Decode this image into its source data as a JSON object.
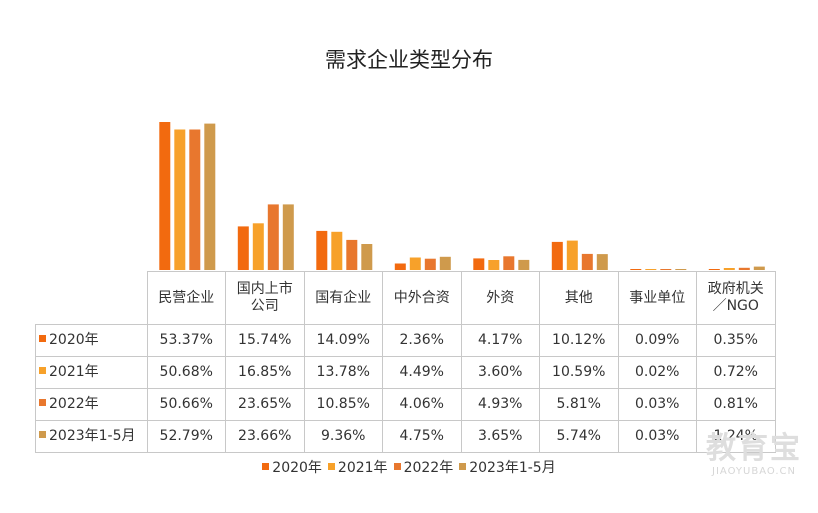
{
  "chart_data": {
    "type": "bar",
    "title": "需求企业类型分布",
    "xlabel": "",
    "ylabel": "",
    "ylim": [
      0,
      55
    ],
    "grid": false,
    "legend_position": "bottom",
    "categories": [
      "民营企业",
      "国内上市公司",
      "国有企业",
      "中外合资",
      "外资",
      "其他",
      "事业单位",
      "政府机关／NGO"
    ],
    "category_labels": [
      [
        "民营企业"
      ],
      [
        "国内上市",
        "公司"
      ],
      [
        "国有企业"
      ],
      [
        "中外合资"
      ],
      [
        "外资"
      ],
      [
        "其他"
      ],
      [
        "事业单位"
      ],
      [
        "政府机关",
        "／NGO"
      ]
    ],
    "series": [
      {
        "name": "2020年",
        "color": "#f26a0f",
        "values": [
          53.37,
          15.74,
          14.09,
          2.36,
          4.17,
          10.12,
          0.09,
          0.35
        ],
        "labels": [
          "53.37%",
          "15.74%",
          "14.09%",
          "2.36%",
          "4.17%",
          "10.12%",
          "0.09%",
          "0.35%"
        ]
      },
      {
        "name": "2021年",
        "color": "#f7a12a",
        "values": [
          50.68,
          16.85,
          13.78,
          4.49,
          3.6,
          10.59,
          0.02,
          0.72
        ],
        "labels": [
          "50.68%",
          "16.85%",
          "13.78%",
          "4.49%",
          "3.60%",
          "10.59%",
          "0.02%",
          "0.72%"
        ]
      },
      {
        "name": "2022年",
        "color": "#e8772e",
        "values": [
          50.66,
          23.65,
          10.85,
          4.06,
          4.93,
          5.81,
          0.03,
          0.81
        ],
        "labels": [
          "50.66%",
          "23.65%",
          "10.85%",
          "4.06%",
          "4.93%",
          "5.81%",
          "0.03%",
          "0.81%"
        ]
      },
      {
        "name": "2023年1-5月",
        "color": "#cf9a4c",
        "values": [
          52.79,
          23.66,
          9.36,
          4.75,
          3.65,
          5.74,
          0.03,
          1.24
        ],
        "labels": [
          "52.79%",
          "23.66%",
          "9.36%",
          "4.75%",
          "3.65%",
          "5.74%",
          "0.03%",
          "1.24%"
        ]
      }
    ]
  },
  "watermark": {
    "cn": "教育宝",
    "en": "JIAOYUBAO.CN"
  }
}
